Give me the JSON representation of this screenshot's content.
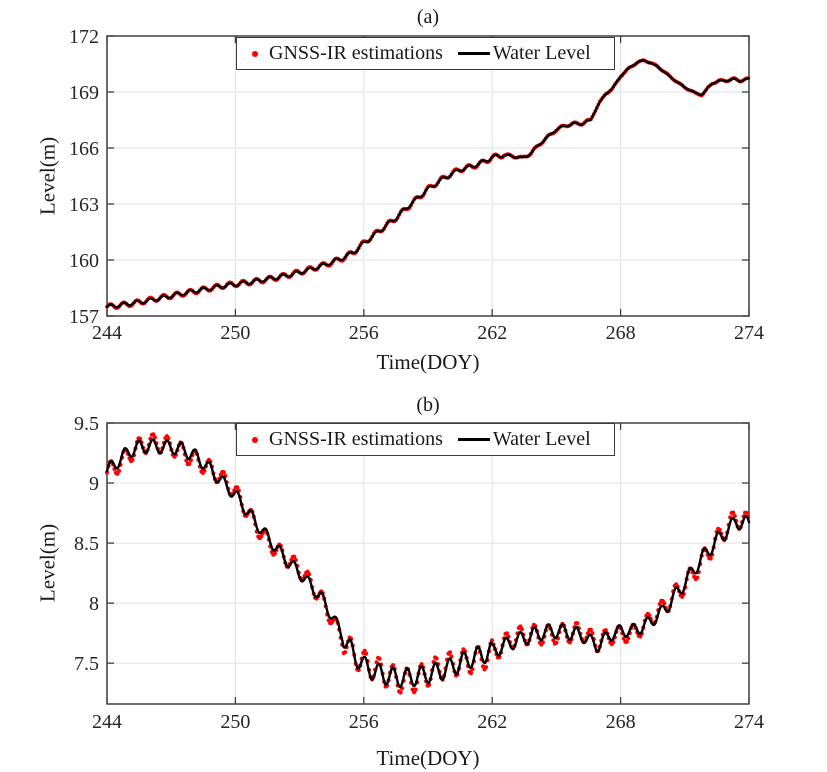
{
  "figure_colors": {
    "background": "#ffffff",
    "axis": "#3f3f3f",
    "grid": "#e0e0e0",
    "tick_label": "#262626",
    "gnss_red": "#ff0000",
    "water_black": "#000000"
  },
  "chart_data": [
    {
      "id": "a",
      "type": "line",
      "title": "(a)",
      "xlabel": "Time(DOY)",
      "ylabel": "Level(m)",
      "xlim": [
        244,
        274
      ],
      "ylim": [
        157,
        172
      ],
      "xticks": [
        244,
        250,
        256,
        262,
        268,
        274
      ],
      "xtick_labels": [
        "244",
        "250",
        "256",
        "262",
        "268",
        "274"
      ],
      "yticks": [
        157,
        160,
        163,
        166,
        169,
        172
      ],
      "ytick_labels": [
        "157",
        "160",
        "163",
        "166",
        "169",
        "172"
      ],
      "grid": true,
      "legend_position": "top-center-inside",
      "series": [
        {
          "name": "GNSS-IR estimations",
          "type": "scatter",
          "marker": "dot",
          "color": "#ff0000",
          "amplitude_scale": 1.3,
          "deviation": 0.015
        },
        {
          "name": "Water Level",
          "type": "line",
          "color": "#000000",
          "amplitude_scale": 1.0,
          "deviation": 0
        }
      ],
      "oscillation": {
        "period_days": 0.62,
        "amplitude_segments": [
          [
            244,
            262.5,
            0.1
          ],
          [
            262.5,
            266.5,
            0.055
          ],
          [
            266.5,
            272,
            0.022
          ],
          [
            272,
            274,
            0.045
          ]
        ]
      },
      "trend_points": [
        [
          244,
          157.5
        ],
        [
          244.5,
          157.57
        ],
        [
          245,
          157.65
        ],
        [
          245.5,
          157.74
        ],
        [
          246,
          157.84
        ],
        [
          246.5,
          157.96
        ],
        [
          247,
          158.08
        ],
        [
          247.5,
          158.2
        ],
        [
          248,
          158.32
        ],
        [
          248.5,
          158.42
        ],
        [
          249,
          158.52
        ],
        [
          249.5,
          158.62
        ],
        [
          250,
          158.7
        ],
        [
          250.5,
          158.78
        ],
        [
          251,
          158.88
        ],
        [
          251.5,
          158.98
        ],
        [
          252,
          159.08
        ],
        [
          252.5,
          159.2
        ],
        [
          253,
          159.33
        ],
        [
          253.5,
          159.5
        ],
        [
          254,
          159.68
        ],
        [
          254.5,
          159.88
        ],
        [
          255,
          160.1
        ],
        [
          255.5,
          160.4
        ],
        [
          256,
          160.9
        ],
        [
          256.5,
          161.35
        ],
        [
          257,
          161.8
        ],
        [
          257.5,
          162.25
        ],
        [
          258,
          162.8
        ],
        [
          258.5,
          163.3
        ],
        [
          259,
          163.8
        ],
        [
          259.5,
          164.2
        ],
        [
          260,
          164.55
        ],
        [
          260.5,
          164.85
        ],
        [
          261,
          165.0
        ],
        [
          261.5,
          165.2
        ],
        [
          262,
          165.5
        ],
        [
          262.5,
          165.62
        ],
        [
          263,
          165.55
        ],
        [
          263.4,
          165.45
        ],
        [
          263.8,
          165.7
        ],
        [
          264.2,
          166.2
        ],
        [
          264.6,
          166.6
        ],
        [
          265,
          167.0
        ],
        [
          265.4,
          167.2
        ],
        [
          265.8,
          167.3
        ],
        [
          266.2,
          167.3
        ],
        [
          266.6,
          167.5
        ],
        [
          267,
          168.4
        ],
        [
          267.3,
          168.9
        ],
        [
          267.6,
          169.15
        ],
        [
          268,
          169.85
        ],
        [
          268.4,
          170.3
        ],
        [
          268.8,
          170.6
        ],
        [
          269.1,
          170.7
        ],
        [
          269.4,
          170.55
        ],
        [
          269.7,
          170.38
        ],
        [
          270,
          170.1
        ],
        [
          270.5,
          169.65
        ],
        [
          271,
          169.25
        ],
        [
          271.5,
          168.95
        ],
        [
          271.8,
          168.85
        ],
        [
          272,
          169.1
        ],
        [
          272.3,
          169.5
        ],
        [
          272.6,
          169.58
        ],
        [
          273,
          169.62
        ],
        [
          273.3,
          169.68
        ],
        [
          273.6,
          169.6
        ],
        [
          274,
          169.7
        ]
      ]
    },
    {
      "id": "b",
      "type": "line",
      "title": "(b)",
      "xlabel": "Time(DOY)",
      "ylabel": "Level(m)",
      "xlim": [
        244,
        274
      ],
      "ylim": [
        7.16,
        9.5
      ],
      "xticks": [
        244,
        250,
        256,
        262,
        268,
        274
      ],
      "xtick_labels": [
        "244",
        "250",
        "256",
        "262",
        "268",
        "274"
      ],
      "yticks": [
        7.5,
        8,
        8.5,
        9,
        9.5
      ],
      "ytick_labels": [
        "7.5",
        "8",
        "8.5",
        "9",
        "9.5"
      ],
      "grid": true,
      "legend_position": "top-center-inside",
      "series": [
        {
          "name": "GNSS-IR estimations",
          "type": "scatter",
          "marker": "dot",
          "color": "#ff0000",
          "amplitude_scale": 1.35,
          "deviation": 0.028
        },
        {
          "name": "Water Level",
          "type": "line",
          "color": "#000000",
          "amplitude_scale": 1.0,
          "deviation": 0
        }
      ],
      "oscillation": {
        "period_days": 0.66,
        "amplitude_segments": [
          [
            244,
            249,
            0.055
          ],
          [
            249,
            255,
            0.05
          ],
          [
            255,
            262,
            0.078
          ],
          [
            262,
            266,
            0.06
          ],
          [
            266,
            270,
            0.05
          ],
          [
            270,
            274,
            0.06
          ]
        ]
      },
      "trend_points": [
        [
          244,
          9.1
        ],
        [
          244.5,
          9.18
        ],
        [
          245,
          9.26
        ],
        [
          245.5,
          9.3
        ],
        [
          246,
          9.31
        ],
        [
          246.5,
          9.3
        ],
        [
          247,
          9.3
        ],
        [
          247.5,
          9.28
        ],
        [
          248,
          9.24
        ],
        [
          248.5,
          9.17
        ],
        [
          249,
          9.08
        ],
        [
          249.5,
          8.99
        ],
        [
          250,
          8.9
        ],
        [
          250.5,
          8.78
        ],
        [
          251,
          8.66
        ],
        [
          251.5,
          8.55
        ],
        [
          252,
          8.44
        ],
        [
          252.5,
          8.34
        ],
        [
          253,
          8.25
        ],
        [
          253.5,
          8.15
        ],
        [
          254,
          8.05
        ],
        [
          254.5,
          7.9
        ],
        [
          255,
          7.73
        ],
        [
          255.5,
          7.58
        ],
        [
          256,
          7.48
        ],
        [
          256.5,
          7.43
        ],
        [
          257,
          7.4
        ],
        [
          257.5,
          7.38
        ],
        [
          258,
          7.38
        ],
        [
          258.5,
          7.39
        ],
        [
          259,
          7.41
        ],
        [
          259.5,
          7.43
        ],
        [
          260,
          7.46
        ],
        [
          260.5,
          7.5
        ],
        [
          261,
          7.54
        ],
        [
          261.5,
          7.57
        ],
        [
          262,
          7.6
        ],
        [
          262.5,
          7.64
        ],
        [
          263,
          7.68
        ],
        [
          263.5,
          7.71
        ],
        [
          264,
          7.74
        ],
        [
          264.5,
          7.76
        ],
        [
          265,
          7.77
        ],
        [
          265.5,
          7.76
        ],
        [
          266,
          7.74
        ],
        [
          266.5,
          7.7
        ],
        [
          266.9,
          7.64
        ],
        [
          267.3,
          7.71
        ],
        [
          267.7,
          7.75
        ],
        [
          268,
          7.77
        ],
        [
          268.5,
          7.77
        ],
        [
          269,
          7.8
        ],
        [
          269.5,
          7.86
        ],
        [
          270,
          7.94
        ],
        [
          270.5,
          8.05
        ],
        [
          271,
          8.17
        ],
        [
          271.5,
          8.3
        ],
        [
          272,
          8.42
        ],
        [
          272.5,
          8.52
        ],
        [
          273,
          8.61
        ],
        [
          273.4,
          8.68
        ],
        [
          273.7,
          8.67
        ],
        [
          274,
          8.66
        ]
      ]
    }
  ]
}
